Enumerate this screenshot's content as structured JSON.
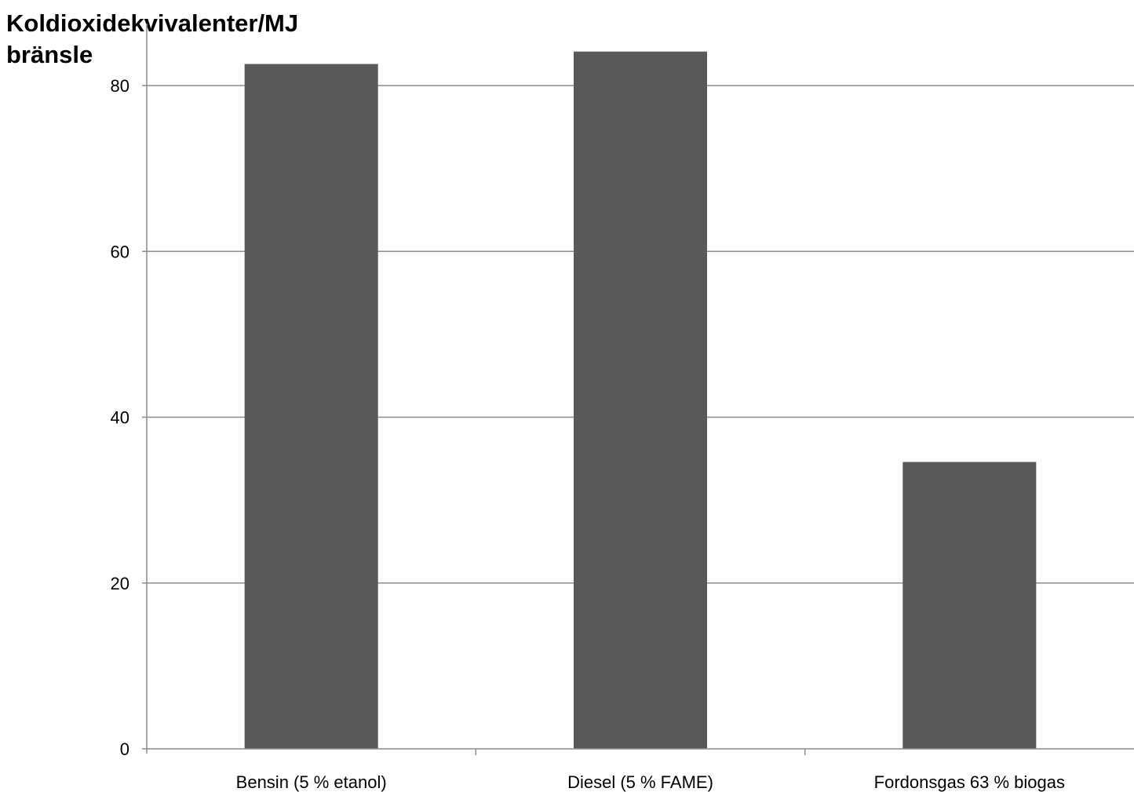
{
  "chart_data": {
    "type": "bar",
    "title": "",
    "xlabel": "",
    "ylabel": "Koldioxidekvivalenter/MJ bränsle",
    "categories": [
      "Bensin (5 % etanol)",
      "Diesel (5 % FAME)",
      "Fordonsgas 63 % biogas"
    ],
    "values": [
      82.6,
      84.1,
      34.6
    ],
    "ylim": [
      0,
      80
    ],
    "yticks": [
      0,
      20,
      40,
      60,
      80
    ],
    "grid": true,
    "legend": "none",
    "colors": {
      "bar": "#595959",
      "gridline": "#8c8c8c",
      "axis": "#8c8c8c",
      "text": "#000000"
    }
  }
}
